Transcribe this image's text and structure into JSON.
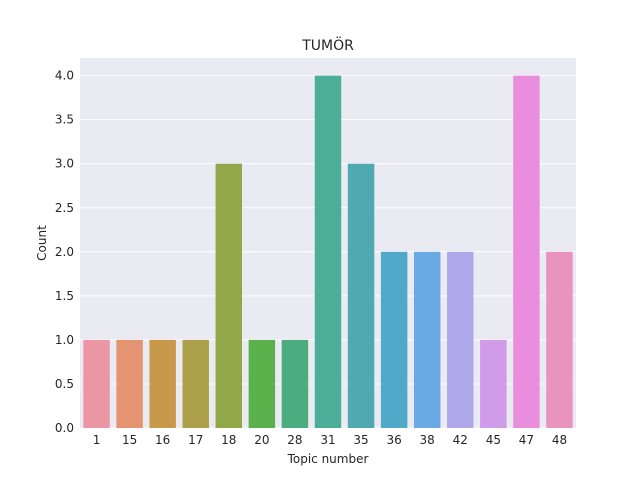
{
  "chart_data": {
    "type": "bar",
    "title": "TUMÖR",
    "xlabel": "Topic number",
    "ylabel": "Count",
    "categories": [
      "1",
      "15",
      "16",
      "17",
      "18",
      "20",
      "28",
      "31",
      "35",
      "36",
      "38",
      "42",
      "45",
      "47",
      "48"
    ],
    "values": [
      1,
      1,
      1,
      1,
      3,
      1,
      1,
      4,
      3,
      2,
      2,
      2,
      1,
      4,
      2
    ],
    "ylim": [
      0,
      4.2
    ],
    "yticks": [
      "0.0",
      "0.5",
      "1.0",
      "1.5",
      "2.0",
      "2.5",
      "3.0",
      "3.5",
      "4.0"
    ],
    "grid": true,
    "background": "#EAEAF2",
    "colors": [
      "#EA96A3",
      "#E49470",
      "#C8994A",
      "#ADA04A",
      "#92A74A",
      "#5AB04A",
      "#4BAD7F",
      "#4CAD98",
      "#4EAAB0",
      "#51A9C9",
      "#69A9E4",
      "#AFA8EA",
      "#D09BE9",
      "#E88EDC",
      "#E993BF"
    ]
  }
}
